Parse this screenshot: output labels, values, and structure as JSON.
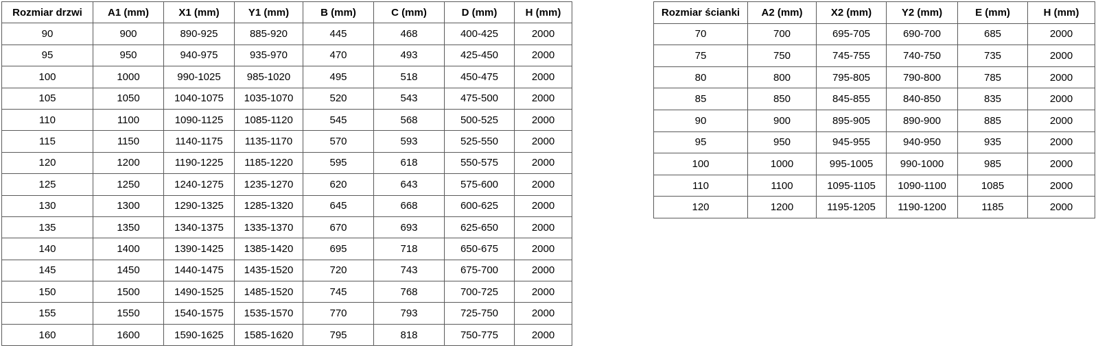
{
  "doors_table": {
    "name": "door-sizes",
    "headers": [
      "Rozmiar drzwi",
      "A1 (mm)",
      "X1 (mm)",
      "Y1 (mm)",
      "B (mm)",
      "C (mm)",
      "D (mm)",
      "H (mm)"
    ],
    "rows": [
      [
        "90",
        "900",
        "890-925",
        "885-920",
        "445",
        "468",
        "400-425",
        "2000"
      ],
      [
        "95",
        "950",
        "940-975",
        "935-970",
        "470",
        "493",
        "425-450",
        "2000"
      ],
      [
        "100",
        "1000",
        "990-1025",
        "985-1020",
        "495",
        "518",
        "450-475",
        "2000"
      ],
      [
        "105",
        "1050",
        "1040-1075",
        "1035-1070",
        "520",
        "543",
        "475-500",
        "2000"
      ],
      [
        "110",
        "1100",
        "1090-1125",
        "1085-1120",
        "545",
        "568",
        "500-525",
        "2000"
      ],
      [
        "115",
        "1150",
        "1140-1175",
        "1135-1170",
        "570",
        "593",
        "525-550",
        "2000"
      ],
      [
        "120",
        "1200",
        "1190-1225",
        "1185-1220",
        "595",
        "618",
        "550-575",
        "2000"
      ],
      [
        "125",
        "1250",
        "1240-1275",
        "1235-1270",
        "620",
        "643",
        "575-600",
        "2000"
      ],
      [
        "130",
        "1300",
        "1290-1325",
        "1285-1320",
        "645",
        "668",
        "600-625",
        "2000"
      ],
      [
        "135",
        "1350",
        "1340-1375",
        "1335-1370",
        "670",
        "693",
        "625-650",
        "2000"
      ],
      [
        "140",
        "1400",
        "1390-1425",
        "1385-1420",
        "695",
        "718",
        "650-675",
        "2000"
      ],
      [
        "145",
        "1450",
        "1440-1475",
        "1435-1520",
        "720",
        "743",
        "675-700",
        "2000"
      ],
      [
        "150",
        "1500",
        "1490-1525",
        "1485-1520",
        "745",
        "768",
        "700-725",
        "2000"
      ],
      [
        "155",
        "1550",
        "1540-1575",
        "1535-1570",
        "770",
        "793",
        "725-750",
        "2000"
      ],
      [
        "160",
        "1600",
        "1590-1625",
        "1585-1620",
        "795",
        "818",
        "750-775",
        "2000"
      ]
    ],
    "border_color": "#595959",
    "text_color": "#000000"
  },
  "walls_table": {
    "name": "wall-sizes",
    "headers": [
      "Rozmiar ścianki",
      "A2 (mm)",
      "X2 (mm)",
      "Y2 (mm)",
      "E (mm)",
      "H (mm)"
    ],
    "rows": [
      [
        "70",
        "700",
        "695-705",
        "690-700",
        "685",
        "2000"
      ],
      [
        "75",
        "750",
        "745-755",
        "740-750",
        "735",
        "2000"
      ],
      [
        "80",
        "800",
        "795-805",
        "790-800",
        "785",
        "2000"
      ],
      [
        "85",
        "850",
        "845-855",
        "840-850",
        "835",
        "2000"
      ],
      [
        "90",
        "900",
        "895-905",
        "890-900",
        "885",
        "2000"
      ],
      [
        "95",
        "950",
        "945-955",
        "940-950",
        "935",
        "2000"
      ],
      [
        "100",
        "1000",
        "995-1005",
        "990-1000",
        "985",
        "2000"
      ],
      [
        "110",
        "1100",
        "1095-1105",
        "1090-1100",
        "1085",
        "2000"
      ],
      [
        "120",
        "1200",
        "1195-1205",
        "1190-1200",
        "1185",
        "2000"
      ]
    ],
    "border_color": "#595959",
    "text_color": "#000000"
  }
}
